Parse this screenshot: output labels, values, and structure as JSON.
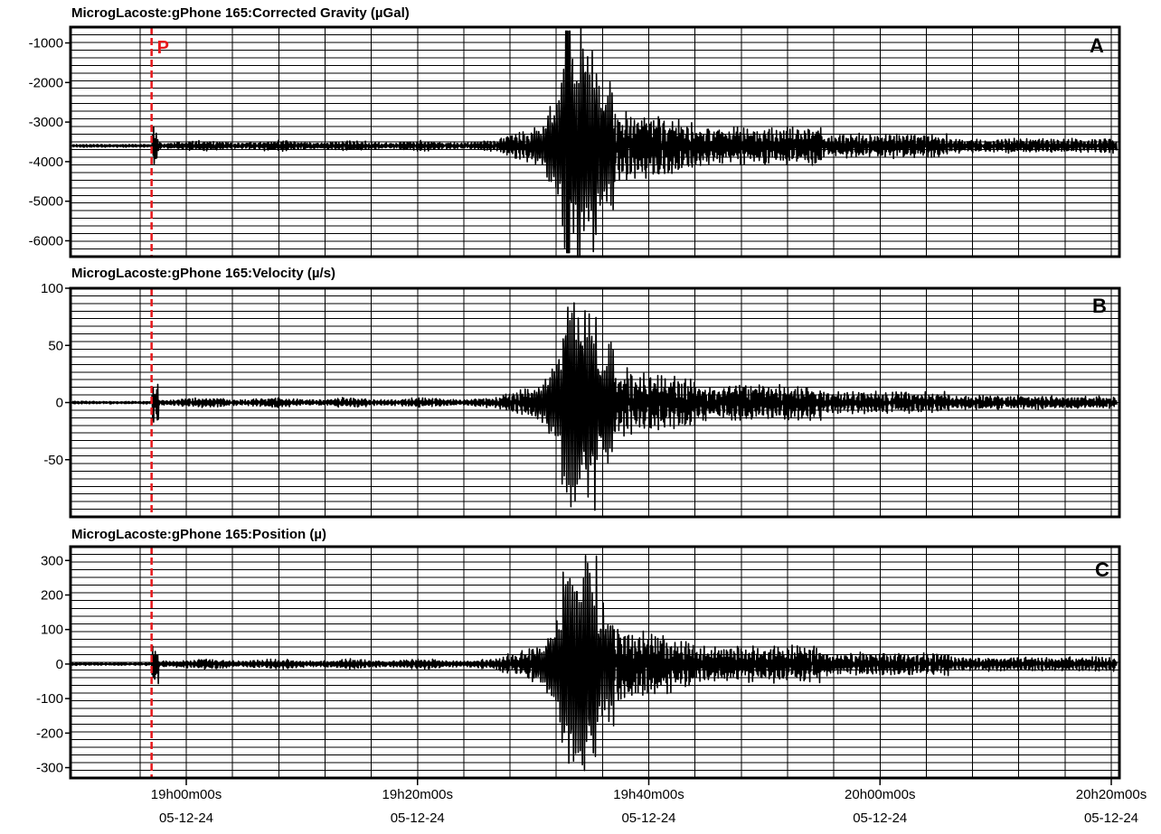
{
  "colors": {
    "trace": "#000000",
    "pick": "#e8171b",
    "grid": "#000000",
    "background": "#ffffff"
  },
  "pick": {
    "label": "P",
    "time_min": -3
  },
  "x_axis": {
    "ticks": [
      {
        "min": 0,
        "time": "19h00m00s",
        "date": "05-12-24"
      },
      {
        "min": 20,
        "time": "19h20m00s",
        "date": "05-12-24"
      },
      {
        "min": 40,
        "time": "19h40m00s",
        "date": "05-12-24"
      },
      {
        "min": 60,
        "time": "20h00m00s",
        "date": "05-12-24"
      },
      {
        "min": 80,
        "time": "20h20m00s",
        "date": "05-12-24"
      }
    ]
  },
  "chart_data": [
    {
      "type": "line",
      "title": "MicrogLacoste:gPhone 165:Corrected Gravity (µGal)",
      "letter": "A",
      "ylim": [
        -6400,
        -600
      ],
      "yticks": [
        -1000,
        -2000,
        -3000,
        -4000,
        -5000,
        -6000
      ],
      "series": [
        {
          "x_min": [
            -10,
            -3,
            -3,
            10,
            25,
            30,
            33,
            36,
            40,
            50,
            60,
            80
          ],
          "y": [
            -3600,
            -3600,
            -2800,
            -3600,
            -3500,
            -2500,
            -700,
            -6300,
            -2400,
            -3600,
            -3500,
            -3550
          ]
        }
      ]
    },
    {
      "type": "line",
      "title": "MicrogLacoste:gPhone 165:Velocity (µ/s)",
      "letter": "B",
      "ylim": [
        -100,
        100
      ],
      "yticks": [
        100,
        50,
        0,
        -50
      ],
      "series": [
        {
          "x_min": [
            -10,
            -3,
            -3,
            10,
            25,
            30,
            33,
            36,
            40,
            50,
            60,
            80
          ],
          "y": [
            0,
            0,
            5,
            0,
            0,
            20,
            92,
            -88,
            30,
            10,
            5,
            0
          ]
        }
      ]
    },
    {
      "type": "line",
      "title": "MicrogLacoste:gPhone 165:Position (µ)",
      "letter": "C",
      "ylim": [
        -330,
        340
      ],
      "yticks": [
        300,
        200,
        100,
        0,
        -100,
        -200,
        -300
      ],
      "series": [
        {
          "x_min": [
            -10,
            -3,
            -3,
            10,
            25,
            30,
            33,
            36,
            40,
            50,
            60,
            80
          ],
          "y": [
            0,
            0,
            3,
            0,
            0,
            40,
            320,
            -300,
            110,
            30,
            20,
            0
          ]
        }
      ]
    }
  ]
}
